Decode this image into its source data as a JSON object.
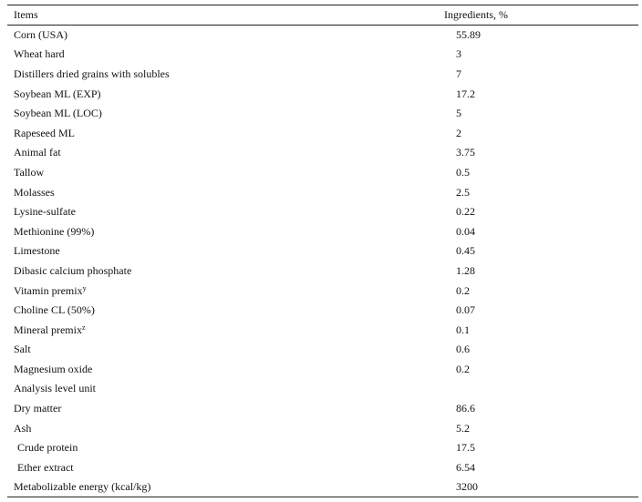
{
  "table": {
    "header": [
      "Items",
      "Ingredients, %"
    ],
    "rows": [
      [
        "Corn (USA)",
        "55.89"
      ],
      [
        "Wheat hard",
        "3"
      ],
      [
        "Distillers dried grains with solubles",
        "7"
      ],
      [
        "Soybean ML (EXP)",
        "17.2"
      ],
      [
        "Soybean ML (LOC)",
        "5"
      ],
      [
        "Rapeseed ML",
        "2"
      ],
      [
        "Animal fat",
        "3.75"
      ],
      [
        "Tallow",
        "0.5"
      ],
      [
        "Molasses",
        "2.5"
      ],
      [
        "Lysine-sulfate",
        "0.22"
      ],
      [
        "Methionine (99%)",
        "0.04"
      ],
      [
        "Limestone",
        "0.45"
      ],
      [
        "Dibasic calcium phosphate",
        "1.28"
      ],
      [
        {
          "label": "Vitamin premix",
          "note": "y"
        },
        "0.2"
      ],
      [
        "Choline CL (50%)",
        "0.07"
      ],
      [
        {
          "label": "Mineral premix",
          "note": "z"
        },
        "0.1"
      ],
      [
        "Salt",
        "0.6"
      ],
      [
        "Magnesium oxide",
        "0.2"
      ],
      [
        "Analysis level unit"
      ],
      [
        "Dry matter",
        "86.6"
      ],
      [
        "Ash",
        "5.2"
      ],
      [
        "Crude protein",
        "17.5"
      ],
      [
        "Ether extract",
        "6.54"
      ],
      [
        "Metabolizable energy (kcal/kg)",
        "3200"
      ]
    ]
  }
}
